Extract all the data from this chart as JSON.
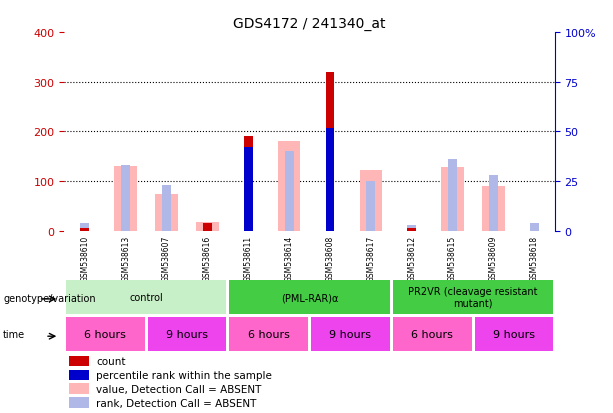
{
  "title": "GDS4172 / 241340_at",
  "samples": [
    "GSM538610",
    "GSM538613",
    "GSM538607",
    "GSM538616",
    "GSM538611",
    "GSM538614",
    "GSM538608",
    "GSM538617",
    "GSM538612",
    "GSM538615",
    "GSM538609",
    "GSM538618"
  ],
  "count": [
    5,
    0,
    0,
    15,
    190,
    0,
    320,
    0,
    5,
    0,
    0,
    0
  ],
  "percentile_rank_pct": [
    0,
    0,
    0,
    0,
    42,
    0,
    52,
    0,
    0,
    0,
    0,
    0
  ],
  "value_absent": [
    0,
    130,
    75,
    18,
    0,
    180,
    0,
    122,
    0,
    128,
    90,
    0
  ],
  "rank_absent_pct": [
    4,
    33,
    23,
    4,
    0,
    40,
    26,
    25,
    3,
    36,
    28,
    4
  ],
  "groups": [
    {
      "label": "control",
      "start": 0,
      "end": 4,
      "color": "#c8f0c8"
    },
    {
      "label": "(PML-RAR)α",
      "start": 4,
      "end": 8,
      "color": "#44cc44"
    },
    {
      "label": "PR2VR (cleavage resistant\nmutant)",
      "start": 8,
      "end": 12,
      "color": "#44cc44"
    }
  ],
  "time_labels": [
    {
      "label": "6 hours",
      "start": 0,
      "end": 2,
      "color": "#ff66cc"
    },
    {
      "label": "9 hours",
      "start": 2,
      "end": 4,
      "color": "#ee44ee"
    },
    {
      "label": "6 hours",
      "start": 4,
      "end": 6,
      "color": "#ff66cc"
    },
    {
      "label": "9 hours",
      "start": 6,
      "end": 8,
      "color": "#ee44ee"
    },
    {
      "label": "6 hours",
      "start": 8,
      "end": 10,
      "color": "#ff66cc"
    },
    {
      "label": "9 hours",
      "start": 10,
      "end": 12,
      "color": "#ee44ee"
    }
  ],
  "ylim_left": [
    0,
    400
  ],
  "ylim_right": [
    0,
    100
  ],
  "yticks_left": [
    0,
    100,
    200,
    300,
    400
  ],
  "yticks_right": [
    0,
    25,
    50,
    75,
    100
  ],
  "count_color": "#cc0000",
  "percentile_color": "#0000cc",
  "value_absent_color": "#ffb6b6",
  "rank_absent_color": "#b0b8e8",
  "bg_color": "#ffffff",
  "axis_left_color": "#cc0000",
  "axis_right_color": "#0000cc",
  "sample_bg_color": "#d3d3d3",
  "legend_items": [
    {
      "color": "#cc0000",
      "label": "count"
    },
    {
      "color": "#0000cc",
      "label": "percentile rank within the sample"
    },
    {
      "color": "#ffb6b6",
      "label": "value, Detection Call = ABSENT"
    },
    {
      "color": "#b0b8e8",
      "label": "rank, Detection Call = ABSENT"
    }
  ]
}
